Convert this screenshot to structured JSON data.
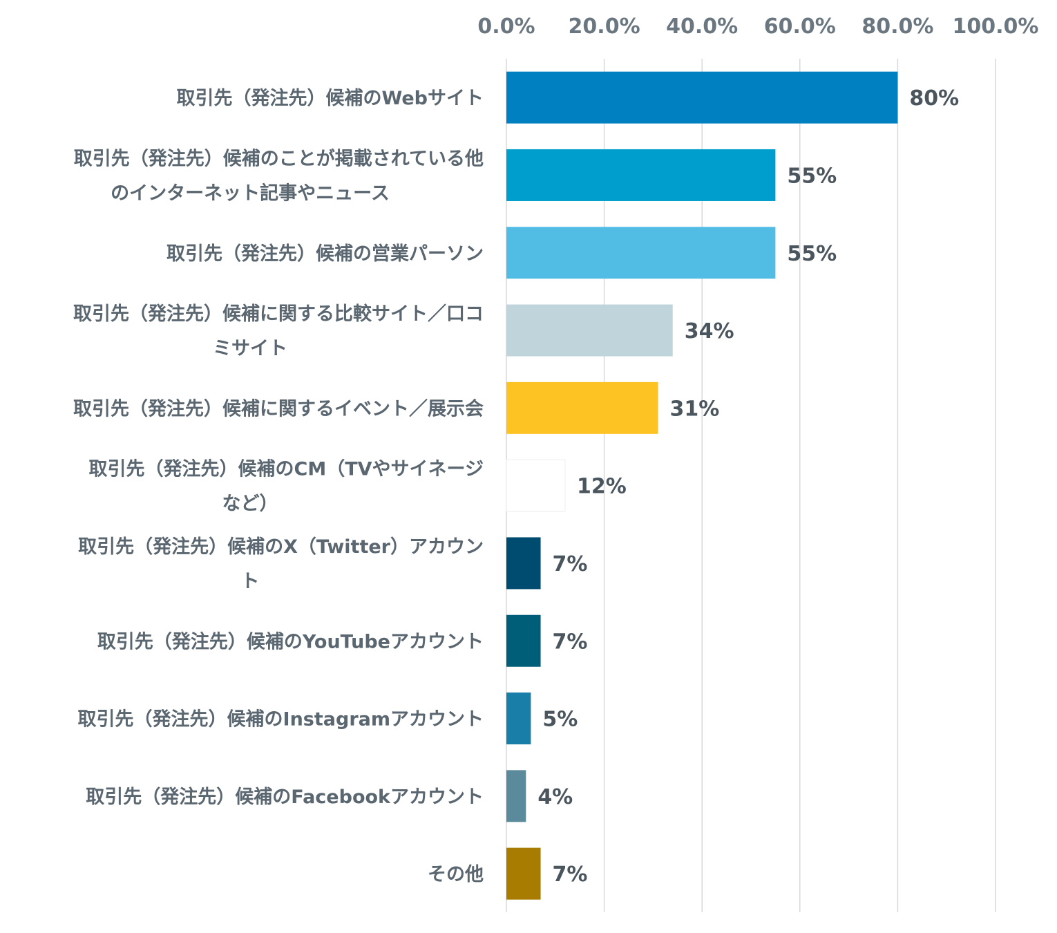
{
  "chart_data": {
    "type": "bar",
    "orientation": "horizontal",
    "xlim": [
      0,
      100
    ],
    "ticks": [
      "0.0%",
      "20.0%",
      "40.0%",
      "60.0%",
      "80.0%",
      "100.0%"
    ],
    "tick_values": [
      0,
      20,
      40,
      60,
      80,
      100
    ],
    "grid": true,
    "axis_position": "top",
    "categories": [
      [
        "取引先（発注先）候補のWebサイト"
      ],
      [
        "取引先（発注先）候補のことが掲載されている他",
        "のインターネット記事やニュース"
      ],
      [
        "取引先（発注先）候補の営業パーソン"
      ],
      [
        "取引先（発注先）候補に関する比較サイト／口コ",
        "ミサイト"
      ],
      [
        "取引先（発注先）候補に関するイベント／展示会"
      ],
      [
        "取引先（発注先）候補のCM（TVやサイネージ",
        "など）"
      ],
      [
        "取引先（発注先）候補のX（Twitter）アカウン",
        "ト"
      ],
      [
        "取引先（発注先）候補のYouTubeアカウント"
      ],
      [
        "取引先（発注先）候補のInstagramアカウント"
      ],
      [
        "取引先（発注先）候補のFacebookアカウント"
      ],
      [
        "その他"
      ]
    ],
    "values": [
      80,
      55,
      55,
      34,
      31,
      12,
      7,
      7,
      5,
      4,
      7
    ],
    "value_labels": [
      "80%",
      "55%",
      "55%",
      "34%",
      "31%",
      "12%",
      "7%",
      "7%",
      "5%",
      "4%",
      "7%"
    ],
    "colors": [
      "#0080c0",
      "#009ecc",
      "#52bde4",
      "#c0d4dc",
      "#fdc323",
      "#ffffff",
      "#004c70",
      "#005e78",
      "#1a7fa8",
      "#5a8a9c",
      "#a87c00"
    ]
  }
}
